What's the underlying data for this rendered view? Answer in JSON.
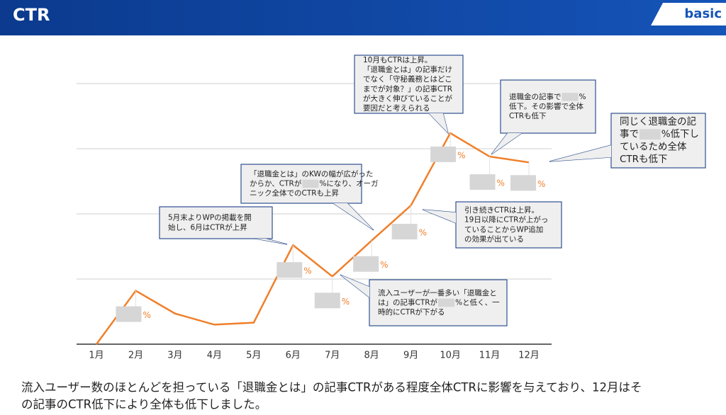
{
  "header": {
    "title": "CTR",
    "badge": "basic"
  },
  "chart_data": {
    "type": "line",
    "categories": [
      "1月",
      "2月",
      "3月",
      "4月",
      "5月",
      "6月",
      "7月",
      "8月",
      "9月",
      "10月",
      "11月",
      "12月"
    ],
    "series": [
      {
        "color": "#f07f2a",
        "values": [
          0,
          0.82,
          0.47,
          0.3,
          0.33,
          1.52,
          1.04,
          1.59,
          2.13,
          3.24,
          2.88,
          2.79
        ]
      }
    ],
    "point_labels": [
      null,
      "%",
      null,
      null,
      null,
      "%",
      "%",
      "%",
      "%",
      "%",
      "%",
      "%"
    ],
    "ylim": [
      0,
      4
    ],
    "yticks": [
      0,
      1,
      2,
      3,
      4
    ],
    "grid": true
  },
  "callouts": [
    {
      "lines": [
        [
          "5月末よりWPの掲載を開"
        ],
        [
          "始し、6月はCTRが上昇"
        ]
      ]
    },
    {
      "lines": [
        [
          "「退職金とは」のKWの幅が広がった"
        ],
        [
          "からか、CTRが",
          "%になり、オーガ"
        ],
        [
          "ニック全体でのCTRも上昇"
        ]
      ]
    },
    {
      "lines": [
        [
          "10月もCTRは上昇。"
        ],
        [
          "「退職金とは」の記事だけ"
        ],
        [
          "でなく「守秘義務とはどこ"
        ],
        [
          "までが対象？」の記事CTR"
        ],
        [
          "が大きく伸びていることが"
        ],
        [
          "要因だと考えられる"
        ]
      ]
    },
    {
      "lines": [
        [
          "退職金の記事で",
          "%"
        ],
        [
          "低下。その影響で全体"
        ],
        [
          "CTRも低下"
        ]
      ]
    },
    {
      "lines": [
        [
          "同じく退職金の記"
        ],
        [
          "事で",
          "%低下し"
        ],
        [
          "ているため全体"
        ],
        [
          "CTRも低下"
        ]
      ]
    },
    {
      "lines": [
        [
          "引き続きCTRは上昇。"
        ],
        [
          "19日以降にCTRが上がっ"
        ],
        [
          "ていることからWP追加"
        ],
        [
          "の効果が出ている"
        ]
      ]
    },
    {
      "lines": [
        [
          "流入ユーザーが一番多い「退職金と"
        ],
        [
          "は」の記事CTRが",
          "%と低く、一"
        ],
        [
          "時的にCTRが下がる"
        ]
      ]
    }
  ],
  "footer": {
    "lines": [
      "流入ユーザー数のほとんどを担っている「退職金とは」の記事CTRがある程度全体CTRに影響を与えており、12月はそ",
      "の記事のCTR低下により全体も低下しました。"
    ]
  }
}
